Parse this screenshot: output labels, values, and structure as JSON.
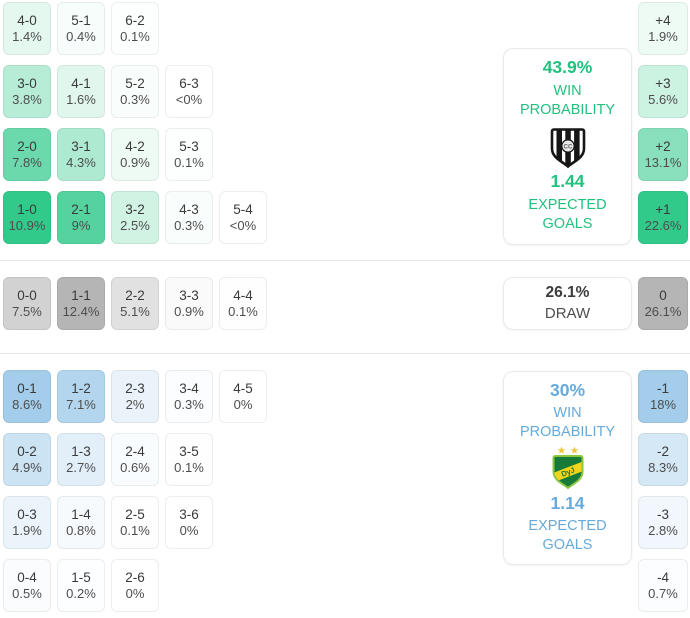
{
  "colors": {
    "home_base": "#31ca8b",
    "draw_base": "#b5b5b5",
    "away_base": "#a3cdea",
    "home_text": "#21c17e",
    "away_text": "#66aadb",
    "draw_text_strong": "#3b3b3b",
    "draw_text": "#4e4e4e",
    "divider": "#e8e8e8"
  },
  "summary": {
    "home": {
      "win_probability": "43.9%",
      "win_probability_label": "WIN PROBABILITY",
      "expected_goals": "1.44",
      "expected_goals_label": "EXPECTED GOALS",
      "crest_icon": "central-cordoba-crest"
    },
    "draw": {
      "probability": "26.1%",
      "label": "DRAW"
    },
    "away": {
      "win_probability": "30%",
      "win_probability_label": "WIN PROBABILITY",
      "expected_goals": "1.14",
      "expected_goals_label": "EXPECTED GOALS",
      "crest_icon": "defensa-y-justicia-crest"
    }
  },
  "chart_data": {
    "type": "heatmap",
    "title": "Correct-score probability matrix with goal-difference aggregates",
    "sections": [
      {
        "name": "home_win",
        "base_color": "#31ca8b",
        "rows": [
          [
            {
              "score": "4-0",
              "pct": "1.4%",
              "value": 1.4
            },
            {
              "score": "5-1",
              "pct": "0.4%",
              "value": 0.4
            },
            {
              "score": "6-2",
              "pct": "0.1%",
              "value": 0.1
            }
          ],
          [
            {
              "score": "3-0",
              "pct": "3.8%",
              "value": 3.8
            },
            {
              "score": "4-1",
              "pct": "1.6%",
              "value": 1.6
            },
            {
              "score": "5-2",
              "pct": "0.3%",
              "value": 0.3
            },
            {
              "score": "6-3",
              "pct": "<0%",
              "value": 0
            }
          ],
          [
            {
              "score": "2-0",
              "pct": "7.8%",
              "value": 7.8
            },
            {
              "score": "3-1",
              "pct": "4.3%",
              "value": 4.3
            },
            {
              "score": "4-2",
              "pct": "0.9%",
              "value": 0.9
            },
            {
              "score": "5-3",
              "pct": "0.1%",
              "value": 0.1
            }
          ],
          [
            {
              "score": "1-0",
              "pct": "10.9%",
              "value": 10.9
            },
            {
              "score": "2-1",
              "pct": "9%",
              "value": 9
            },
            {
              "score": "3-2",
              "pct": "2.5%",
              "value": 2.5
            },
            {
              "score": "4-3",
              "pct": "0.3%",
              "value": 0.3
            },
            {
              "score": "5-4",
              "pct": "<0%",
              "value": 0
            }
          ]
        ]
      },
      {
        "name": "draw",
        "base_color": "#b5b5b5",
        "rows": [
          [
            {
              "score": "0-0",
              "pct": "7.5%",
              "value": 7.5
            },
            {
              "score": "1-1",
              "pct": "12.4%",
              "value": 12.4
            },
            {
              "score": "2-2",
              "pct": "5.1%",
              "value": 5.1
            },
            {
              "score": "3-3",
              "pct": "0.9%",
              "value": 0.9
            },
            {
              "score": "4-4",
              "pct": "0.1%",
              "value": 0.1
            }
          ]
        ]
      },
      {
        "name": "away_win",
        "base_color": "#a3cdea",
        "rows": [
          [
            {
              "score": "0-1",
              "pct": "8.6%",
              "value": 8.6
            },
            {
              "score": "1-2",
              "pct": "7.1%",
              "value": 7.1
            },
            {
              "score": "2-3",
              "pct": "2%",
              "value": 2
            },
            {
              "score": "3-4",
              "pct": "0.3%",
              "value": 0.3
            },
            {
              "score": "4-5",
              "pct": "0%",
              "value": 0
            }
          ],
          [
            {
              "score": "0-2",
              "pct": "4.9%",
              "value": 4.9
            },
            {
              "score": "1-3",
              "pct": "2.7%",
              "value": 2.7
            },
            {
              "score": "2-4",
              "pct": "0.6%",
              "value": 0.6
            },
            {
              "score": "3-5",
              "pct": "0.1%",
              "value": 0.1
            }
          ],
          [
            {
              "score": "0-3",
              "pct": "1.9%",
              "value": 1.9
            },
            {
              "score": "1-4",
              "pct": "0.8%",
              "value": 0.8
            },
            {
              "score": "2-5",
              "pct": "0.1%",
              "value": 0.1
            },
            {
              "score": "3-6",
              "pct": "0%",
              "value": 0
            }
          ],
          [
            {
              "score": "0-4",
              "pct": "0.5%",
              "value": 0.5
            },
            {
              "score": "1-5",
              "pct": "0.2%",
              "value": 0.2
            },
            {
              "score": "2-6",
              "pct": "0%",
              "value": 0
            }
          ]
        ]
      }
    ],
    "goal_difference": {
      "home": [
        {
          "diff": "+4",
          "pct": "1.9%",
          "value": 1.9
        },
        {
          "diff": "+3",
          "pct": "5.6%",
          "value": 5.6
        },
        {
          "diff": "+2",
          "pct": "13.1%",
          "value": 13.1
        },
        {
          "diff": "+1",
          "pct": "22.6%",
          "value": 22.6
        }
      ],
      "draw": [
        {
          "diff": "0",
          "pct": "26.1%",
          "value": 26.1
        }
      ],
      "away": [
        {
          "diff": "-1",
          "pct": "18%",
          "value": 18
        },
        {
          "diff": "-2",
          "pct": "8.3%",
          "value": 8.3
        },
        {
          "diff": "-3",
          "pct": "2.8%",
          "value": 2.8
        },
        {
          "diff": "-4",
          "pct": "0.7%",
          "value": 0.7
        }
      ]
    }
  }
}
